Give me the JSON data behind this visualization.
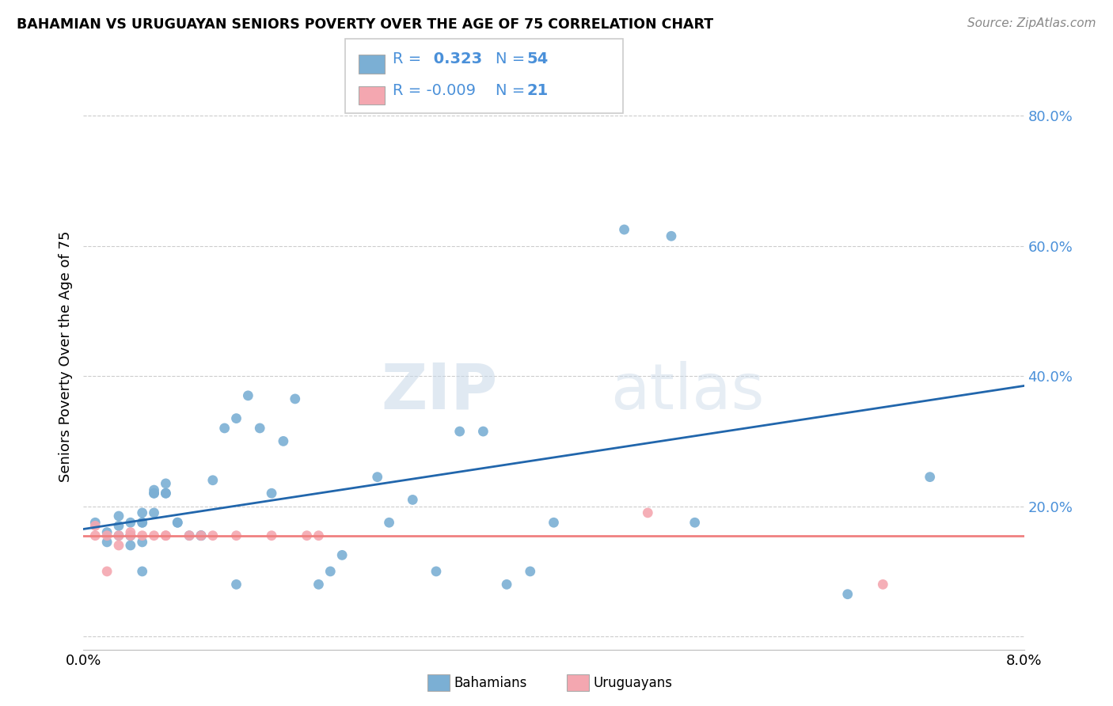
{
  "title": "BAHAMIAN VS URUGUAYAN SENIORS POVERTY OVER THE AGE OF 75 CORRELATION CHART",
  "source": "Source: ZipAtlas.com",
  "ylabel": "Seniors Poverty Over the Age of 75",
  "xlim": [
    0.0,
    0.08
  ],
  "ylim": [
    -0.02,
    0.88
  ],
  "xticks": [
    0.0,
    0.01,
    0.02,
    0.03,
    0.04,
    0.05,
    0.06,
    0.07,
    0.08
  ],
  "xticklabels": [
    "0.0%",
    "",
    "",
    "",
    "",
    "",
    "",
    "",
    "8.0%"
  ],
  "yticks": [
    0.0,
    0.2,
    0.4,
    0.6,
    0.8
  ],
  "yticklabels": [
    "",
    "20.0%",
    "40.0%",
    "60.0%",
    "80.0%"
  ],
  "bahamians_R": 0.323,
  "bahamians_N": 54,
  "uruguayans_R": -0.009,
  "uruguayans_N": 21,
  "blue_color": "#7bafd4",
  "pink_color": "#f4a7b0",
  "blue_line_color": "#2166ac",
  "pink_line_color": "#f08080",
  "watermark_zip": "ZIP",
  "watermark_atlas": "atlas",
  "bahamians_x": [
    0.001,
    0.002,
    0.002,
    0.003,
    0.003,
    0.003,
    0.004,
    0.004,
    0.004,
    0.004,
    0.005,
    0.005,
    0.005,
    0.005,
    0.005,
    0.006,
    0.006,
    0.006,
    0.006,
    0.007,
    0.007,
    0.007,
    0.008,
    0.008,
    0.009,
    0.01,
    0.01,
    0.01,
    0.011,
    0.012,
    0.013,
    0.013,
    0.014,
    0.015,
    0.016,
    0.017,
    0.018,
    0.02,
    0.021,
    0.022,
    0.025,
    0.026,
    0.028,
    0.03,
    0.032,
    0.034,
    0.036,
    0.038,
    0.04,
    0.046,
    0.05,
    0.052,
    0.065,
    0.072
  ],
  "bahamians_y": [
    0.175,
    0.145,
    0.16,
    0.17,
    0.155,
    0.185,
    0.14,
    0.155,
    0.175,
    0.155,
    0.1,
    0.175,
    0.145,
    0.175,
    0.19,
    0.22,
    0.22,
    0.225,
    0.19,
    0.22,
    0.235,
    0.22,
    0.175,
    0.175,
    0.155,
    0.155,
    0.155,
    0.155,
    0.24,
    0.32,
    0.08,
    0.335,
    0.37,
    0.32,
    0.22,
    0.3,
    0.365,
    0.08,
    0.1,
    0.125,
    0.245,
    0.175,
    0.21,
    0.1,
    0.315,
    0.315,
    0.08,
    0.1,
    0.175,
    0.625,
    0.615,
    0.175,
    0.065,
    0.245
  ],
  "uruguayans_x": [
    0.001,
    0.001,
    0.002,
    0.002,
    0.003,
    0.003,
    0.004,
    0.004,
    0.005,
    0.006,
    0.007,
    0.007,
    0.009,
    0.01,
    0.011,
    0.013,
    0.016,
    0.019,
    0.02,
    0.048,
    0.068
  ],
  "uruguayans_y": [
    0.155,
    0.17,
    0.1,
    0.155,
    0.14,
    0.155,
    0.16,
    0.155,
    0.155,
    0.155,
    0.155,
    0.155,
    0.155,
    0.155,
    0.155,
    0.155,
    0.155,
    0.155,
    0.155,
    0.19,
    0.08
  ],
  "blue_line_x0": 0.0,
  "blue_line_y0": 0.165,
  "blue_line_x1": 0.08,
  "blue_line_y1": 0.385,
  "pink_line_x0": 0.0,
  "pink_line_x1": 0.08,
  "pink_line_y0": 0.155,
  "pink_line_y1": 0.155
}
